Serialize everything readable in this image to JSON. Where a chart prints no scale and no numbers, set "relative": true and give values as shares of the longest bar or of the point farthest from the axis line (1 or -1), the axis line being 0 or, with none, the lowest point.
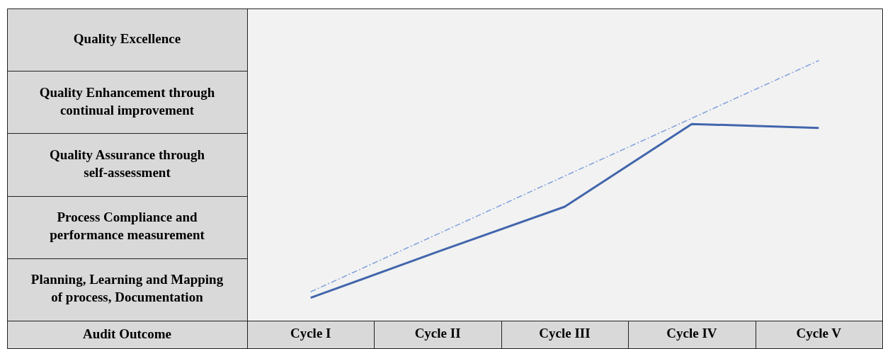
{
  "chart_data": {
    "type": "line",
    "annotations": [
      "Audit Outcome"
    ],
    "relative": true,
    "categories": [
      "Cycle I",
      "Cycle II",
      "Cycle III",
      "Cycle IV",
      "Cycle V"
    ],
    "y_categories": [
      "Quality Excellence",
      "Quality Enhancement through continual improvement",
      "Quality Assurance through self-assessment",
      "Process Compliance and performance measurement",
      "Planning, Learning and Mapping of process, Documentation"
    ],
    "series": [
      {
        "color": "#4266ac",
        "line_style": "solid",
        "values": [
          0.088,
          0.265,
          0.438,
          0.756,
          0.741
        ]
      },
      {
        "color": "#7ea0dc",
        "line_style": "dashed",
        "values": [
          0.111,
          0.333,
          0.556,
          0.778,
          1
        ]
      }
    ],
    "grid": false,
    "legend": false,
    "marker": "none"
  }
}
